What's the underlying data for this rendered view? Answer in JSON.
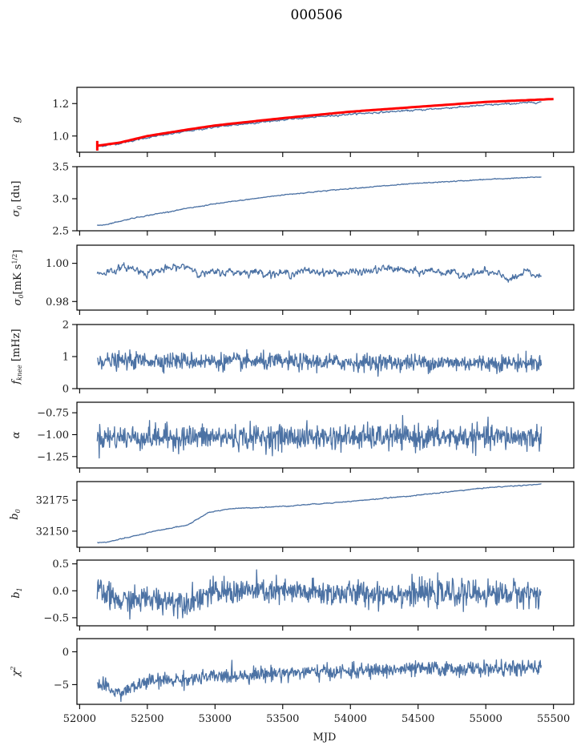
{
  "chart_data": {
    "type": "line",
    "title": "000506",
    "xlabel": "MJD",
    "xlim": [
      51980,
      55650
    ],
    "x_ticks": [
      52000,
      52500,
      53000,
      53500,
      54000,
      54500,
      55000,
      55500
    ],
    "x_range": [
      52130,
      55410
    ],
    "series_color": "#4c72a4",
    "fit_color": "#ff0000",
    "panels": [
      {
        "id": "g",
        "ylabel": "g",
        "ylim": [
          0.9,
          1.3
        ],
        "y_ticks": [
          1.0,
          1.2
        ],
        "y_tick_labels": [
          "1.0",
          "1.2"
        ],
        "trend": [
          [
            52130,
            0.935
          ],
          [
            52300,
            0.955
          ],
          [
            52500,
            0.99
          ],
          [
            52800,
            1.03
          ],
          [
            53000,
            1.055
          ],
          [
            53500,
            1.1
          ],
          [
            54000,
            1.135
          ],
          [
            54500,
            1.16
          ],
          [
            55000,
            1.19
          ],
          [
            55410,
            1.21
          ]
        ],
        "noise": 0.002,
        "overlay": {
          "name": "fit",
          "trend": [
            [
              52130,
              0.94
            ],
            [
              52300,
              0.96
            ],
            [
              52500,
              1.0
            ],
            [
              52800,
              1.04
            ],
            [
              53000,
              1.065
            ],
            [
              53500,
              1.11
            ],
            [
              54000,
              1.15
            ],
            [
              54500,
              1.18
            ],
            [
              55000,
              1.21
            ],
            [
              55500,
              1.228
            ]
          ],
          "errorbar_at": 52130,
          "errorbar_range": [
            0.91,
            0.97
          ]
        }
      },
      {
        "id": "sigma0-du",
        "ylabel": "σ0 [du]",
        "ylim": [
          2.5,
          3.5
        ],
        "y_ticks": [
          2.5,
          3.0,
          3.5
        ],
        "y_tick_labels": [
          "2.5",
          "3.0",
          "3.5"
        ],
        "trend": [
          [
            52130,
            2.58
          ],
          [
            52200,
            2.6
          ],
          [
            52400,
            2.7
          ],
          [
            52800,
            2.85
          ],
          [
            53000,
            2.92
          ],
          [
            53500,
            3.06
          ],
          [
            54000,
            3.16
          ],
          [
            54500,
            3.24
          ],
          [
            55000,
            3.3
          ],
          [
            55410,
            3.34
          ]
        ],
        "noise": 0.003
      },
      {
        "id": "sigma0-mk",
        "ylabel": "σ0[mK s^1/2]",
        "ylim": [
          0.9755,
          1.0095
        ],
        "y_ticks": [
          0.98,
          1.0
        ],
        "y_tick_labels": [
          "0.98",
          "1.00"
        ],
        "trend": [
          [
            52130,
            0.9945
          ],
          [
            52350,
            0.998
          ],
          [
            52500,
            0.995
          ],
          [
            52650,
            0.997
          ],
          [
            52800,
            0.9985
          ],
          [
            52900,
            0.9945
          ],
          [
            53100,
            0.9955
          ],
          [
            53300,
            0.9955
          ],
          [
            53500,
            0.9945
          ],
          [
            53700,
            0.996
          ],
          [
            53900,
            0.995
          ],
          [
            54100,
            0.9955
          ],
          [
            54300,
            0.9975
          ],
          [
            54500,
            0.995
          ],
          [
            54600,
            0.9965
          ],
          [
            54800,
            0.994
          ],
          [
            55000,
            0.9955
          ],
          [
            55200,
            0.9915
          ],
          [
            55300,
            0.9955
          ],
          [
            55410,
            0.9925
          ]
        ],
        "noise": 0.0008
      },
      {
        "id": "fknee",
        "ylabel": "f_knee [mHz]",
        "ylim": [
          0,
          2
        ],
        "y_ticks": [
          0,
          1,
          2
        ],
        "y_tick_labels": [
          "0",
          "1",
          "2"
        ],
        "trend": [
          [
            52130,
            0.95
          ],
          [
            52200,
            0.85
          ],
          [
            52500,
            0.88
          ],
          [
            53000,
            0.85
          ],
          [
            54000,
            0.82
          ],
          [
            55000,
            0.8
          ],
          [
            55410,
            0.8
          ]
        ],
        "noise": 0.13
      },
      {
        "id": "alpha",
        "ylabel": "α",
        "ylim": [
          -1.38,
          -0.63
        ],
        "y_ticks": [
          -1.25,
          -1.0,
          -0.75
        ],
        "y_tick_labels": [
          "−1.25",
          "−1.00",
          "−0.75"
        ],
        "trend": [
          [
            52130,
            -1.03
          ],
          [
            55410,
            -1.03
          ]
        ],
        "noise": 0.07
      },
      {
        "id": "b0",
        "ylabel": "b0",
        "ylim": [
          32137,
          32190
        ],
        "y_ticks": [
          32150,
          32175
        ],
        "y_tick_labels": [
          "32150",
          "32175"
        ],
        "trend": [
          [
            52130,
            32141
          ],
          [
            52200,
            32141
          ],
          [
            52400,
            32146
          ],
          [
            52600,
            32151
          ],
          [
            52800,
            32155
          ],
          [
            52950,
            32165
          ],
          [
            53100,
            32168
          ],
          [
            53500,
            32170
          ],
          [
            54000,
            32174
          ],
          [
            54500,
            32179
          ],
          [
            55000,
            32185
          ],
          [
            55410,
            32188
          ]
        ],
        "noise": 0.15
      },
      {
        "id": "b1",
        "ylabel": "b1",
        "ylim": [
          -0.65,
          0.57
        ],
        "y_ticks": [
          -0.5,
          0.0,
          0.5
        ],
        "y_tick_labels": [
          "−0.5",
          "0.0",
          "0.5"
        ],
        "trend": [
          [
            52130,
            0.0
          ],
          [
            52300,
            -0.2
          ],
          [
            52500,
            -0.15
          ],
          [
            52800,
            -0.2
          ],
          [
            52950,
            -0.05
          ],
          [
            53200,
            0.0
          ],
          [
            53600,
            -0.03
          ],
          [
            54000,
            -0.05
          ],
          [
            54500,
            -0.05
          ],
          [
            55000,
            -0.05
          ],
          [
            55410,
            -0.05
          ]
        ],
        "noise": 0.12
      },
      {
        "id": "chi2",
        "ylabel": "χ2",
        "ylim": [
          -8,
          2
        ],
        "y_ticks": [
          -5,
          0
        ],
        "y_tick_labels": [
          "−5",
          "0"
        ],
        "trend": [
          [
            52130,
            -5
          ],
          [
            52300,
            -6.3
          ],
          [
            52500,
            -4.5
          ],
          [
            52800,
            -4.2
          ],
          [
            53000,
            -3.8
          ],
          [
            53500,
            -3.2
          ],
          [
            54000,
            -3
          ],
          [
            54500,
            -2.6
          ],
          [
            55000,
            -2.6
          ],
          [
            55410,
            -2.5
          ]
        ],
        "noise": 0.55
      }
    ]
  }
}
